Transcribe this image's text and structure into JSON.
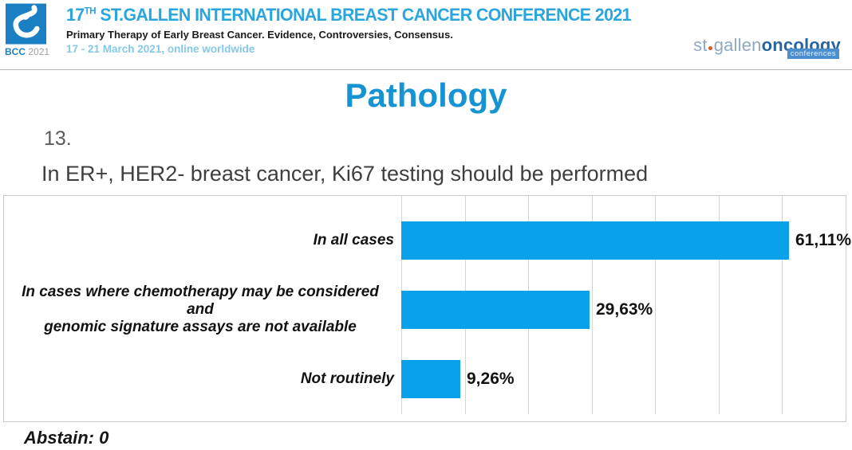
{
  "header": {
    "logo_badge": {
      "bcc": "BCC",
      "year": "2021"
    },
    "title_number": "17",
    "title_superscript": "TH",
    "title_rest": " ST.GALLEN INTERNATIONAL BREAST CANCER CONFERENCE 2021",
    "subtitle": "Primary Therapy of Early Breast Cancer. Evidence, Controversies, Consensus.",
    "dates": "17 - 21 March 2021, online worldwide",
    "right_logo": {
      "part1": "st",
      "part2": "gallen",
      "part3": "oncology",
      "badge": "conferences"
    }
  },
  "slide": {
    "section_title": "Pathology",
    "question_number": "13.",
    "question_text": "In ER+, HER2- breast cancer, Ki67 testing should be performed",
    "abstain_label": "Abstain: 0"
  },
  "colors": {
    "header_blue": "#2aa5dd",
    "dates_blue": "#85c9e8",
    "title_blue": "#1593d2",
    "bar_blue": "#09a1e9",
    "logo_blue": "#1b7fc3",
    "oncology_blue": "#2a649e",
    "stgallen_blue": "#8fa9c4",
    "badge_blue": "#4a8fd0",
    "dot_orange": "#d95b2b"
  },
  "chart_data": {
    "type": "bar",
    "orientation": "horizontal",
    "title": "",
    "categories": [
      "In all cases",
      "In cases where chemotherapy may be considered and genomic signature assays are not available",
      "Not routinely"
    ],
    "category_lines": [
      [
        "In all cases"
      ],
      [
        "In cases where chemotherapy may be considered and",
        "genomic signature assays are not available"
      ],
      [
        "Not routinely"
      ]
    ],
    "values": [
      61.11,
      29.63,
      9.26
    ],
    "value_labels": [
      "61,11%",
      "29,63%",
      "9,26%"
    ],
    "xlim": [
      0,
      70
    ],
    "gridline_step": 10,
    "grid": true,
    "legend": false,
    "bar_color": "#09a1e9"
  }
}
